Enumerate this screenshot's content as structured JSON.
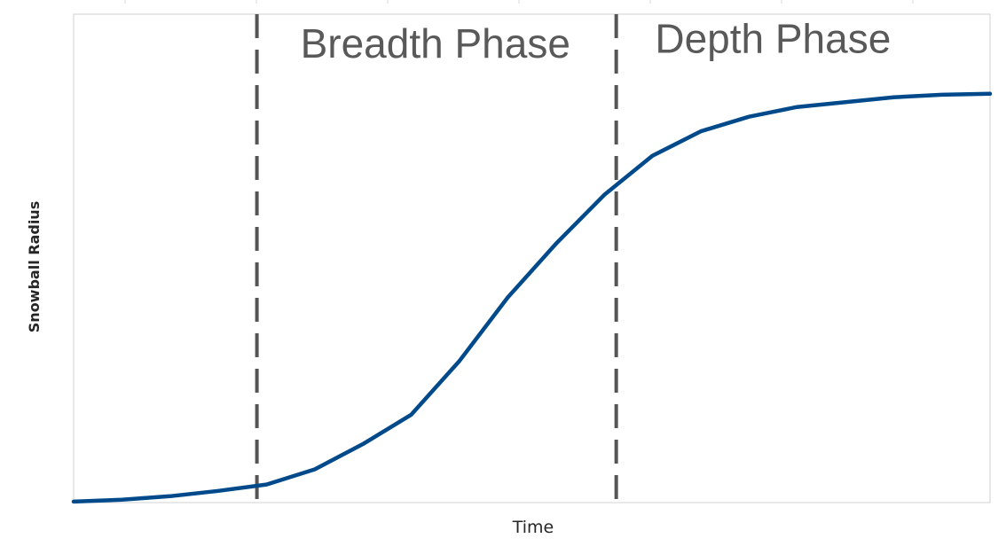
{
  "chart_data": {
    "type": "line",
    "title": "",
    "xlabel": "Time",
    "ylabel": "Snowball Radius",
    "x_ticks_labeled": false,
    "y_ticks_labeled": false,
    "grid": false,
    "legend": "none",
    "xlim": [
      0,
      19
    ],
    "ylim": [
      0,
      100
    ],
    "series": [
      {
        "color": "#004a8b",
        "x": [
          0,
          1,
          2,
          3,
          4,
          5,
          6,
          7,
          8,
          9,
          10,
          11,
          12,
          13,
          14,
          15,
          16,
          17,
          18,
          19
        ],
        "y": [
          0.2,
          0.6,
          1.3,
          2.4,
          3.7,
          6.8,
          12,
          18,
          29,
          42,
          53,
          63,
          71,
          76,
          79,
          81,
          82,
          83,
          83.5,
          83.7
        ]
      }
    ],
    "phase_boundaries": [
      {
        "x": 3.8,
        "style": "dashed",
        "color": "#555555"
      },
      {
        "x": 11.25,
        "style": "dashed",
        "color": "#555555"
      }
    ],
    "annotations": [
      {
        "text": "Breadth Phase",
        "x": 7.5,
        "y": 94
      },
      {
        "text": "Depth Phase",
        "x": 14.5,
        "y": 95
      }
    ]
  },
  "colors": {
    "line": "#004a8b",
    "divider": "#555555",
    "frame": "#d0d0d0",
    "label_text": "#595959",
    "axis_text": "#262626"
  }
}
